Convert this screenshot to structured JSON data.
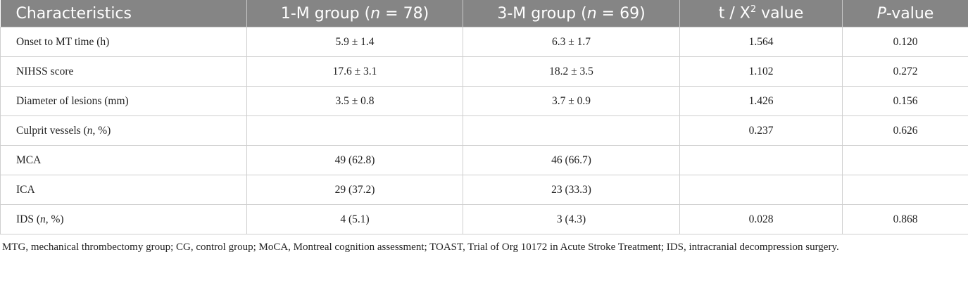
{
  "table": {
    "header": [
      "Characteristics",
      [
        "1-M group (",
        "n",
        " = 78)"
      ],
      [
        "3-M group (",
        "n",
        " = 69)"
      ],
      [
        "t / X",
        "2",
        " value"
      ],
      [
        "P",
        "-value"
      ]
    ],
    "rows": [
      [
        "Onset to MT time (h)",
        "5.9 ± 1.4",
        "6.3 ± 1.7",
        "1.564",
        "0.120"
      ],
      [
        "NIHSS score",
        "17.6 ± 3.1",
        "18.2 ± 3.5",
        "1.102",
        "0.272"
      ],
      [
        "Diameter of lesions (mm)",
        "3.5 ± 0.8",
        "3.7 ± 0.9",
        "1.426",
        "0.156"
      ],
      [
        [
          "Culprit vessels (",
          "n",
          ", %)"
        ],
        null,
        null,
        "0.237",
        "0.626"
      ],
      [
        "MCA",
        "49 (62.8)",
        "46 (66.7)",
        null,
        null
      ],
      [
        "ICA",
        "29 (37.2)",
        "23 (33.3)",
        null,
        null
      ],
      [
        [
          "IDS (",
          "n",
          ", %)"
        ],
        "4 (5.1)",
        "3 (4.3)",
        "0.028",
        "0.868"
      ]
    ],
    "note": "MTG, mechanical thrombectomy group; CG, control group; MoCA, Montreal cognition assessment; TOAST, Trial of Org 10172 in Acute Stroke Treatment; IDS, intracranial decompression surgery."
  }
}
